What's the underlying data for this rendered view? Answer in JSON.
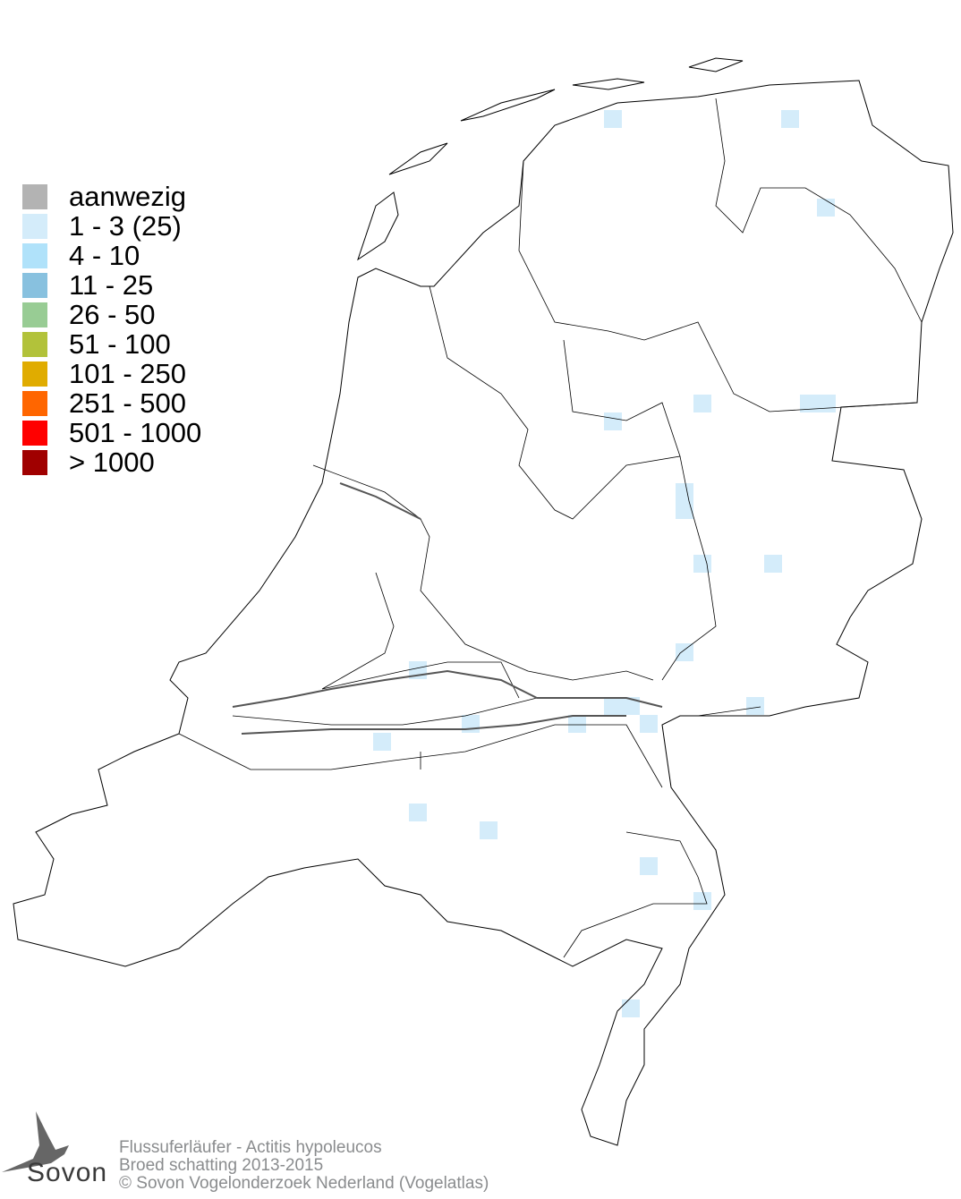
{
  "legend": {
    "items": [
      {
        "label": "aanwezig",
        "color": "#b3b3b3"
      },
      {
        "label": "1 - 3 (25)",
        "color": "#d4ecfa"
      },
      {
        "label": "4 - 10",
        "color": "#b0e2fa"
      },
      {
        "label": "11 - 25",
        "color": "#88c1df"
      },
      {
        "label": "26 - 50",
        "color": "#98cc94"
      },
      {
        "label": "51 - 100",
        "color": "#b2c23a"
      },
      {
        "label": "101 - 250",
        "color": "#e0ac00"
      },
      {
        "label": "251 - 500",
        "color": "#ff6600"
      },
      {
        "label": "501 - 1000",
        "color": "#ff0000"
      },
      {
        "label": "> 1000",
        "color": "#a00000"
      }
    ]
  },
  "map": {
    "occupied_class": "1 - 3 (25)",
    "occupied_cell_count": 25,
    "cell_color": "#d4ecfa",
    "outline_color": "#000000"
  },
  "footer": {
    "species": "Flussuferläufer - Actitis hypoleucos",
    "subtitle": "Broed schatting 2013-2015",
    "copyright": "© Sovon Vogelonderzoek Nederland (Vogelatlas)"
  },
  "logo": {
    "text": "Sovon"
  }
}
